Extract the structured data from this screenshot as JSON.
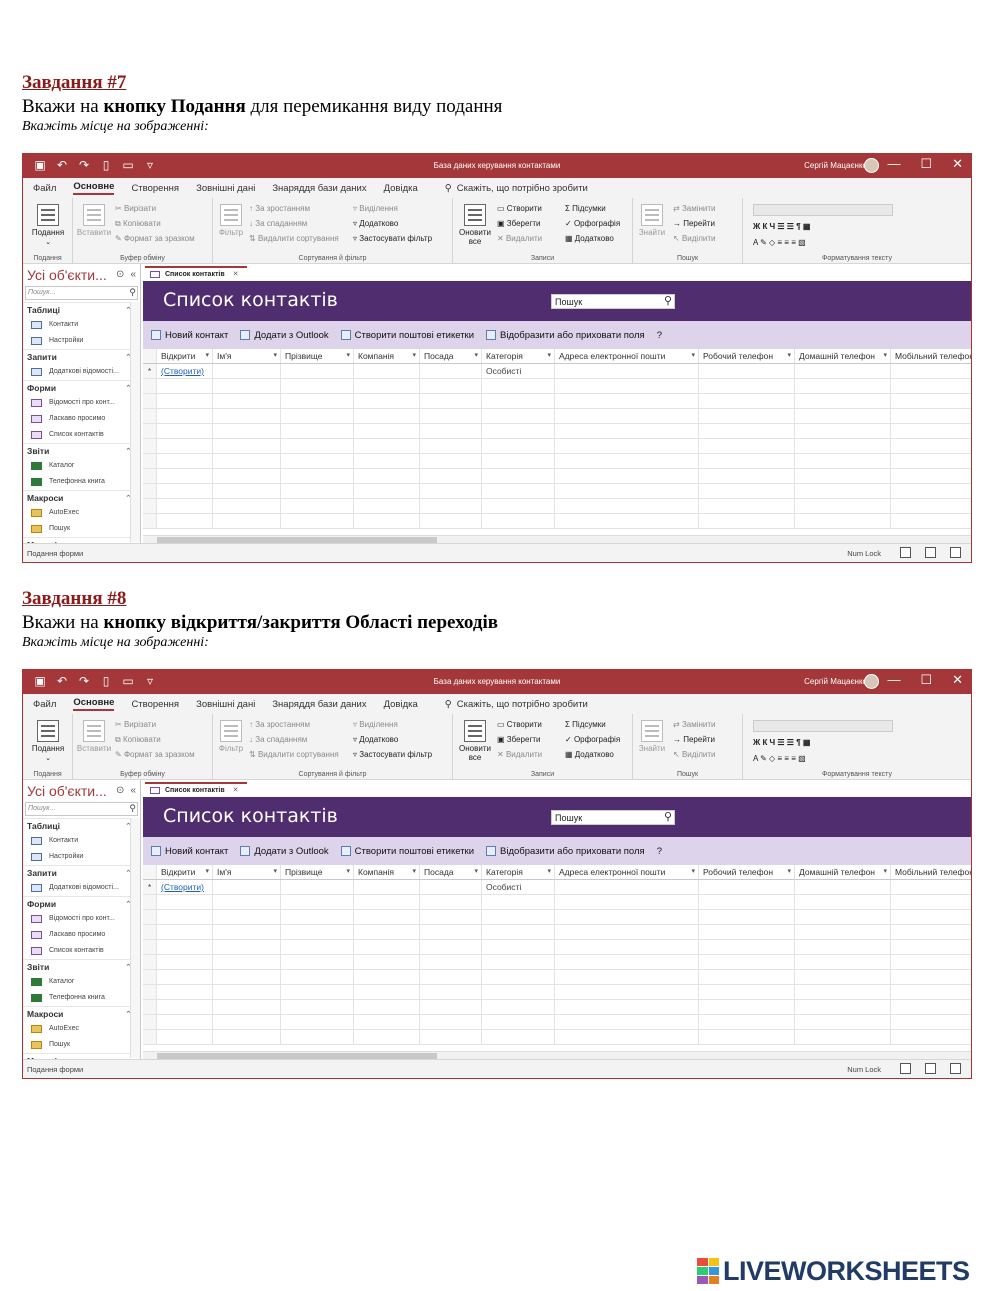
{
  "tasks": [
    {
      "title": "Завдання #7",
      "text_prefix": "Вкажи на ",
      "text_bold": "кнопку Подання",
      "text_suffix": " для перемикання виду подання",
      "hint": "Вкажіть місце на зображенні:"
    },
    {
      "title": "Завдання #8",
      "text_prefix": "Вкажи на ",
      "text_bold": "кнопку відкриття/закриття Області переходів",
      "text_suffix": "",
      "hint": "Вкажіть місце на зображенні:"
    }
  ],
  "window": {
    "title": "База даних керування контактами",
    "user": "Сергій Мацаєнко",
    "controls": [
      "—",
      "☐",
      "✕"
    ]
  },
  "menu": {
    "file": "Файл",
    "home": "Основне",
    "create": "Створення",
    "external": "Зовнішні дані",
    "dbtools": "Знаряддя бази даних",
    "help": "Довідка",
    "tellme": "Скажіть, що потрібно зробити"
  },
  "ribbon": {
    "views": {
      "view": "Подання",
      "group": "Подання"
    },
    "clipboard": {
      "paste": "Вставити",
      "cut": "Вирізати",
      "copy": "Копіювати",
      "format_painter": "Формат за зразком",
      "group": "Буфер обміну"
    },
    "sort": {
      "filter": "Фільтр",
      "asc": "За зростанням",
      "desc": "За спаданням",
      "remove_sort": "Видалити сортування",
      "selection": "Виділення",
      "advanced": "Додатково",
      "toggle": "Застосувати фільтр",
      "group": "Сортування й фільтр"
    },
    "records": {
      "refresh": "Оновити",
      "refresh2": "все",
      "new": "Створити",
      "save": "Зберегти",
      "delete": "Видалити",
      "totals": "Підсумки",
      "spelling": "Орфографія",
      "more": "Додатково",
      "group": "Записи"
    },
    "find": {
      "find": "Знайти",
      "replace": "Замінити",
      "goto": "Перейти",
      "select": "Виділити",
      "group": "Пошук"
    },
    "text": {
      "group": "Форматування тексту"
    }
  },
  "nav": {
    "header": "Усі об'єкти...",
    "search_placeholder": "Пошук...",
    "sections": [
      {
        "title": "Таблиці",
        "items": [
          "Контакти",
          "Настройки"
        ],
        "kind": "table"
      },
      {
        "title": "Запити",
        "items": [
          "Додаткові відомості..."
        ],
        "kind": "table"
      },
      {
        "title": "Форми",
        "items": [
          "Відомості про конт...",
          "Ласкаво просимо",
          "Список контактів"
        ],
        "kind": "form"
      },
      {
        "title": "Звіти",
        "items": [
          "Каталог",
          "Телефонна книга"
        ],
        "kind": "rep"
      },
      {
        "title": "Макроси",
        "items": [
          "AutoExec",
          "Пошук"
        ],
        "kind": "mac"
      }
    ],
    "last_section": "Модулі"
  },
  "doc_tab": "Список контактів",
  "form": {
    "title": "Список контактів",
    "search": "Пошук",
    "commands": [
      "Новий контакт",
      "Додати з Outlook",
      "Створити поштові етикетки",
      "Відобразити або приховати поля"
    ],
    "help": "?",
    "columns": [
      "Відкрити",
      "Ім'я",
      "Прізвище",
      "Компанія",
      "Посада",
      "Категорія",
      "Адреса електронної пошти",
      "Робочий телефон",
      "Домашній телефон",
      "Мобільний телефон"
    ],
    "new_row": {
      "marker": "*",
      "open": "(Створити)",
      "category": "Особисті"
    }
  },
  "status": {
    "left": "Подання форми",
    "right": "Num Lock"
  },
  "brand": "LIVEWORKSHEETS",
  "colors": {
    "access_red": "#a4373a",
    "form_purple": "#4f2d6e",
    "cmd_lavender": "#ddd3ea",
    "task_red": "#8b1a1a",
    "brand_blue": "#1f3b66"
  }
}
